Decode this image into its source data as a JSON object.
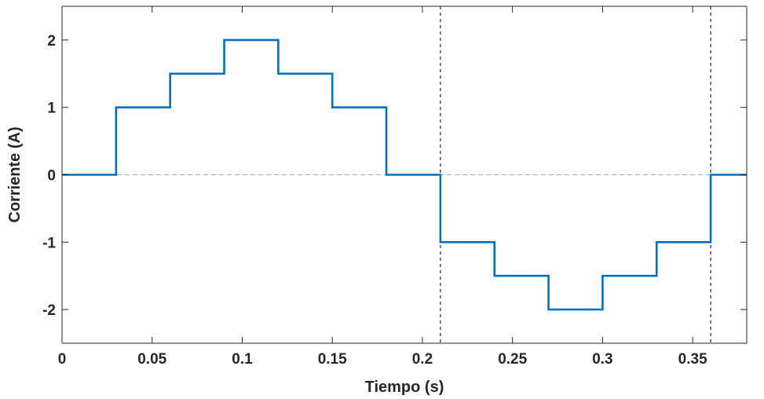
{
  "chart_data": {
    "type": "line",
    "title": "",
    "xlabel": "Tiempo (s)",
    "ylabel": "Corriente (A)",
    "xlim": [
      0,
      0.38
    ],
    "ylim": [
      -2.5,
      2.5
    ],
    "xticks": [
      0,
      0.05,
      0.1,
      0.15,
      0.2,
      0.25,
      0.3,
      0.35
    ],
    "xtick_labels": [
      "0",
      "0.05",
      "0.1",
      "0.15",
      "0.2",
      "0.25",
      "0.3",
      "0.35"
    ],
    "yticks": [
      -2,
      -1,
      0,
      1,
      2
    ],
    "ytick_labels": [
      "-2",
      "-1",
      "0",
      "1",
      "2"
    ],
    "grid": false,
    "legend": "none",
    "series": [
      {
        "style": "step",
        "color": "#0072BD",
        "x": [
          0,
          0.03,
          0.03,
          0.06,
          0.06,
          0.09,
          0.09,
          0.12,
          0.12,
          0.15,
          0.15,
          0.18,
          0.18,
          0.21,
          0.21,
          0.24,
          0.24,
          0.27,
          0.27,
          0.3,
          0.3,
          0.33,
          0.33,
          0.36,
          0.36,
          0.38
        ],
        "y": [
          0,
          0,
          1,
          1,
          1.5,
          1.5,
          2,
          2,
          1.5,
          1.5,
          1,
          1,
          0,
          0,
          -1,
          -1,
          -1.5,
          -1.5,
          -2,
          -2,
          -1.5,
          -1.5,
          -1,
          -1,
          0,
          0
        ]
      }
    ],
    "reference_lines": [
      {
        "orientation": "horizontal",
        "value": 0,
        "style": "dashed",
        "color": "#b3b3b3"
      },
      {
        "orientation": "vertical",
        "value": 0.21,
        "style": "dashed",
        "color": "#404040"
      },
      {
        "orientation": "vertical",
        "value": 0.36,
        "style": "dashed",
        "color": "#404040"
      }
    ]
  }
}
